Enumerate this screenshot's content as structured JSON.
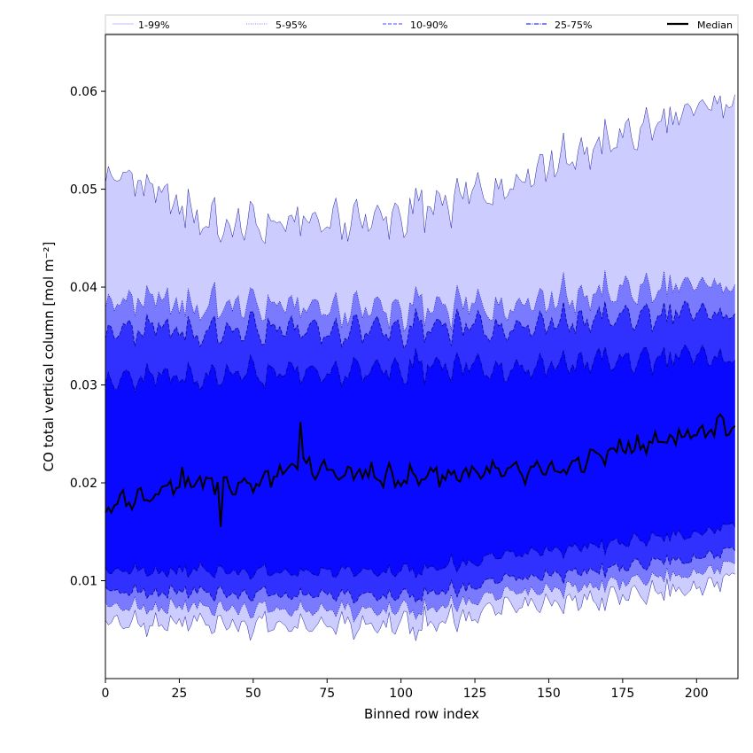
{
  "chart_data": {
    "type": "area",
    "xlabel": "Binned row index",
    "ylabel": "CO total vertical column [mol m⁻²]",
    "xlim": [
      0,
      214
    ],
    "ylim": [
      0,
      0.0658
    ],
    "x_ticks": [
      0,
      25,
      50,
      75,
      100,
      125,
      150,
      175,
      200
    ],
    "y_ticks": [
      0.01,
      0.02,
      0.03,
      0.04,
      0.05,
      0.06
    ],
    "legend_position": "top",
    "colors": {
      "fill": "#0000ff",
      "median": "#000000",
      "band_edge": "#00008b"
    },
    "bands": [
      {
        "name": "1-99%",
        "lower_trend": [
          [
            0,
            0.0058
          ],
          [
            100,
            0.0055
          ],
          [
            213,
            0.01
          ]
        ],
        "upper_trend": [
          [
            0,
            0.052
          ],
          [
            39,
            0.046
          ],
          [
            100,
            0.047
          ],
          [
            213,
            0.0595
          ]
        ]
      },
      {
        "name": "5-95%",
        "lower_trend": [
          [
            0,
            0.0075
          ],
          [
            100,
            0.007
          ],
          [
            213,
            0.0115
          ]
        ],
        "upper_trend": [
          [
            0,
            0.0385
          ],
          [
            100,
            0.0375
          ],
          [
            213,
            0.0405
          ]
        ]
      },
      {
        "name": "10-90%",
        "lower_trend": [
          [
            0,
            0.009
          ],
          [
            100,
            0.0085
          ],
          [
            213,
            0.013
          ]
        ],
        "upper_trend": [
          [
            0,
            0.0355
          ],
          [
            100,
            0.0355
          ],
          [
            213,
            0.0375
          ]
        ]
      },
      {
        "name": "25-75%",
        "lower_trend": [
          [
            0,
            0.011
          ],
          [
            100,
            0.011
          ],
          [
            213,
            0.0155
          ]
        ],
        "upper_trend": [
          [
            0,
            0.0305
          ],
          [
            100,
            0.0315
          ],
          [
            213,
            0.033
          ]
        ]
      }
    ],
    "median_trend": [
      [
        0,
        0.0175
      ],
      [
        25,
        0.02
      ],
      [
        50,
        0.02
      ],
      [
        66,
        0.0215
      ],
      [
        100,
        0.0205
      ],
      [
        125,
        0.021
      ],
      [
        150,
        0.021
      ],
      [
        175,
        0.0235
      ],
      [
        200,
        0.025
      ],
      [
        213,
        0.0262
      ]
    ],
    "legend": [
      "1-99%",
      "5-95%",
      "10-90%",
      "25-75%",
      "Median"
    ],
    "series": [
      {
        "name": "1-99%",
        "style": "thin solid"
      },
      {
        "name": "5-95%",
        "style": "dotted"
      },
      {
        "name": "10-90%",
        "style": "dashed"
      },
      {
        "name": "25-75%",
        "style": "dash-dot"
      },
      {
        "name": "Median",
        "style": "solid black"
      }
    ]
  }
}
